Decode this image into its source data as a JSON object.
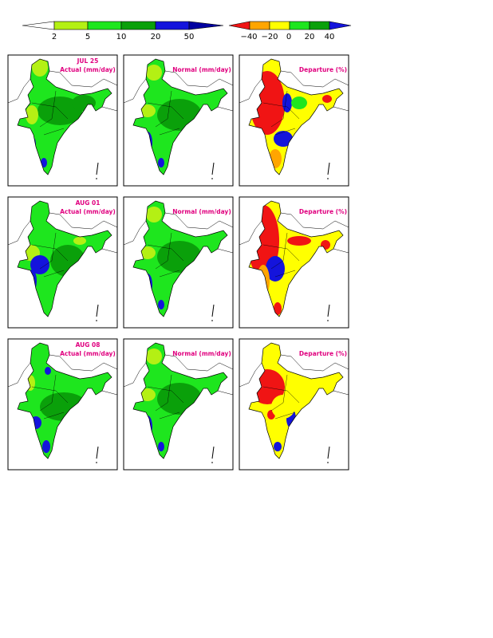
{
  "colorbars": [
    {
      "labels": [
        "2",
        "5",
        "10",
        "20",
        "50"
      ]
    },
    {
      "labels": [
        "−40",
        "−20",
        "0",
        "20",
        "40"
      ]
    }
  ],
  "rows": [
    {
      "date": "JUL 25",
      "titles": [
        "Actual (mm/day)",
        "Normal (mm/day)",
        "Departure (%)"
      ]
    },
    {
      "date": "AUG 01",
      "titles": [
        "Actual (mm/day)",
        "Normal (mm/day)",
        "Departure (%)"
      ]
    },
    {
      "date": "AUG 08",
      "titles": [
        "Actual (mm/day)",
        "Normal (mm/day)",
        "Departure (%)"
      ]
    }
  ]
}
